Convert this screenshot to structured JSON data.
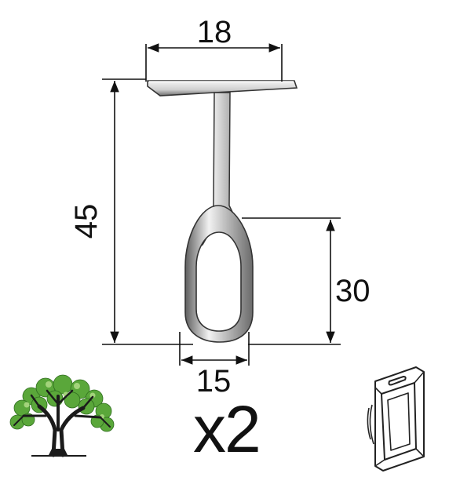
{
  "dimensions": {
    "top_width": "18",
    "total_height": "45",
    "loop_height": "30",
    "loop_width": "15"
  },
  "quantity": "x2",
  "icons": {
    "eco": "tree-icon",
    "package": "blister-pack-icon"
  },
  "colors": {
    "line": "#111111",
    "metal_light": "#e9e9e9",
    "metal_dark": "#6b6b6b",
    "leaf_green": "#5aa73a"
  }
}
